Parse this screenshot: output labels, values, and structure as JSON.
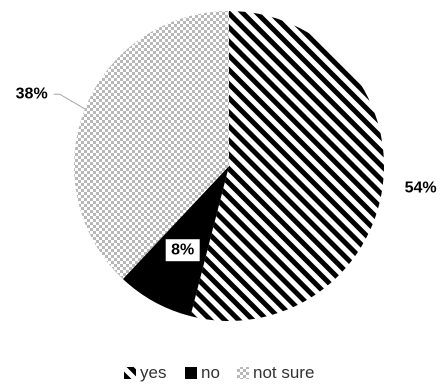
{
  "chart_data": {
    "type": "pie",
    "categories": [
      "yes",
      "no",
      "not sure"
    ],
    "values": [
      54,
      8,
      38
    ],
    "data_labels": [
      "54%",
      "8%",
      "38%"
    ],
    "fills": [
      "diagonal-stripes",
      "solid",
      "checkerboard"
    ],
    "colors": {
      "yes": "#000000",
      "no": "#000000",
      "not sure": "#bfbfbf"
    },
    "legend": {
      "position": "bottom",
      "entries": [
        "yes",
        "no",
        "not sure"
      ]
    },
    "title": "",
    "start_angle": "12 o'clock",
    "direction": "clockwise"
  }
}
